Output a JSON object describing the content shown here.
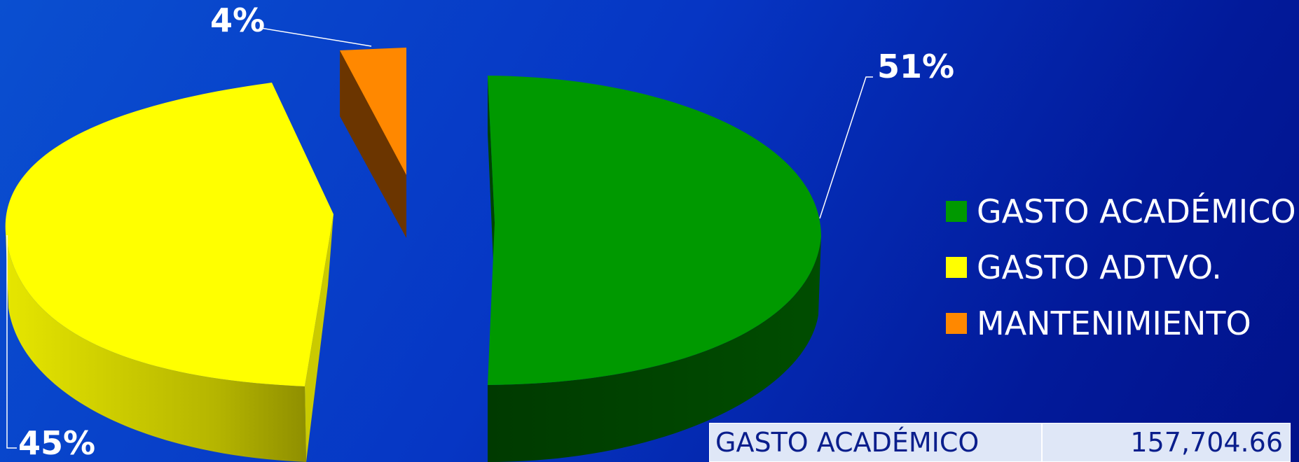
{
  "chart_data": {
    "type": "pie",
    "style": "3d-exploded",
    "slices": [
      {
        "label": "GASTO ACADÉMICO",
        "value": 51,
        "display": "51%",
        "color": "#009900"
      },
      {
        "label": "GASTO ADTVO.",
        "value": 45,
        "display": "45%",
        "color": "#ffff00"
      },
      {
        "label": "MANTENIMIENTO",
        "value": 4,
        "display": "4%",
        "color": "#ff8800"
      }
    ],
    "legend_placement": "right"
  },
  "table": {
    "rows": [
      {
        "name": "GASTO ACADÉMICO",
        "value": "157,704.66"
      }
    ]
  },
  "background": {
    "top": "#0a4fd0",
    "bottom": "#01128a"
  }
}
